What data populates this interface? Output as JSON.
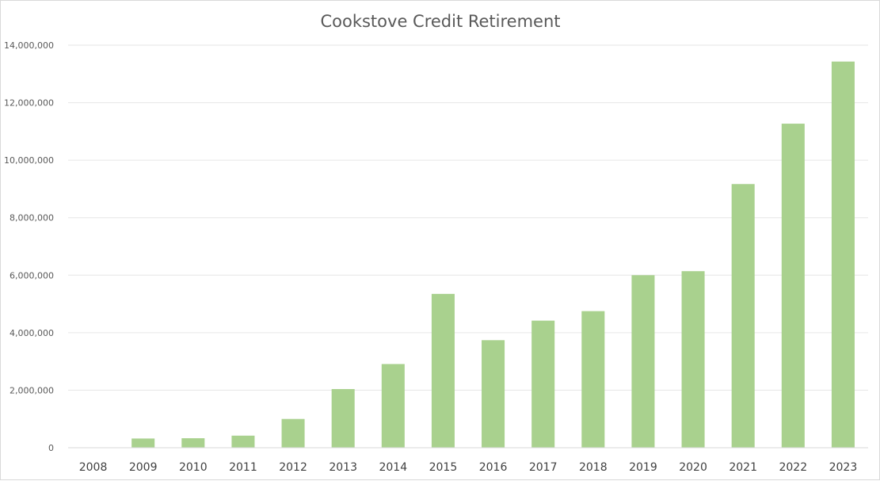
{
  "chart_data": {
    "type": "bar",
    "title": "Cookstove Credit Retirement",
    "xlabel": "",
    "ylabel": "",
    "categories": [
      "2008",
      "2009",
      "2010",
      "2011",
      "2012",
      "2013",
      "2014",
      "2015",
      "2016",
      "2017",
      "2018",
      "2019",
      "2020",
      "2021",
      "2022",
      "2023"
    ],
    "values": [
      0,
      320000,
      330000,
      420000,
      1000000,
      2040000,
      2910000,
      5350000,
      3740000,
      4420000,
      4750000,
      6000000,
      6140000,
      9170000,
      11270000,
      13430000
    ],
    "ylim": [
      0,
      14000000
    ],
    "yticks": [
      0,
      2000000,
      4000000,
      6000000,
      8000000,
      10000000,
      12000000,
      14000000
    ],
    "ytick_labels": [
      "0",
      "2,000,000",
      "4,000,000",
      "6,000,000",
      "8,000,000",
      "10,000,000",
      "12,000,000",
      "14,000,000"
    ],
    "grid": true,
    "legend": "none",
    "bar_color": "#a9d18e",
    "grid_color": "#e6e6e6"
  }
}
